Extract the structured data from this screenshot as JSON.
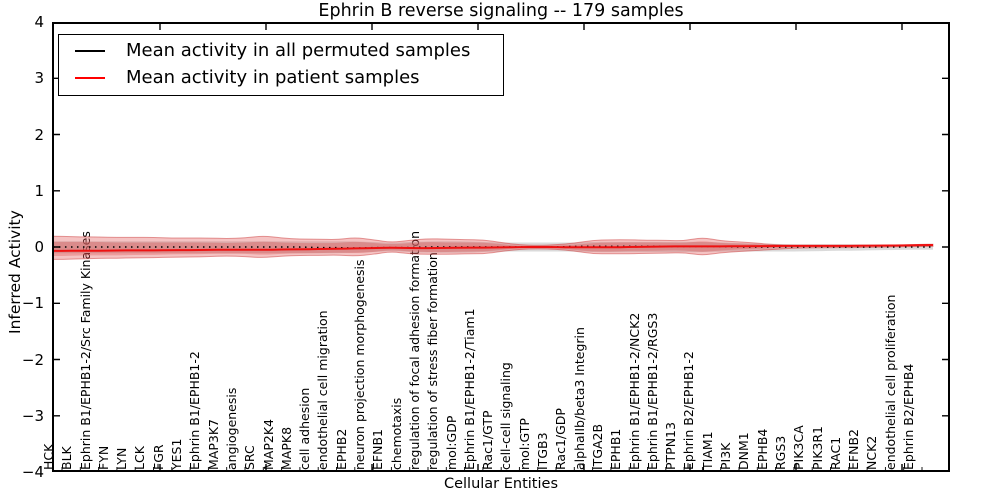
{
  "figure": {
    "title": "Ephrin B reverse signaling -- 179 samples",
    "xlabel": "Cellular Entities",
    "ylabel": "Inferred Activity"
  },
  "legend": {
    "position": "upper left",
    "items": [
      {
        "label": "Mean activity in all permuted samples",
        "color": "#000000"
      },
      {
        "label": "Mean activity in patient samples",
        "color": "#ff0000"
      }
    ]
  },
  "axes": {
    "y_tick_labels": [
      "4",
      "3",
      "2",
      "1",
      "0",
      "−1",
      "−2",
      "−3",
      "−4"
    ],
    "y_range": [
      -4,
      4
    ],
    "grid": false
  },
  "chart_data": {
    "type": "line",
    "title": "Ephrin B reverse signaling -- 179 samples",
    "xlabel": "Cellular Entities",
    "ylabel": "Inferred Activity",
    "ylim": [
      -4,
      4
    ],
    "legend_position": "upper left",
    "grid": false,
    "categories": [
      "HCK",
      "BLK",
      "Ephrin B1/EPHB1-2/Src Family Kinases",
      "FYN",
      "LYN",
      "LCK",
      "FGR",
      "YES1",
      "Ephrin B1/EPHB1-2",
      "MAP3K7",
      "angiogenesis",
      "SRC",
      "MAP2K4",
      "MAPK8",
      "cell adhesion",
      "endothelial cell migration",
      "EPHB2",
      "neuron projection morphogenesis",
      "EFNB1",
      "chemotaxis",
      "regulation of focal adhesion formation",
      "regulation of stress fiber formation",
      "mol:GDP",
      "Ephrin B1/EPHB1-2/Tiam1",
      "Rac1/GTP",
      "cell-cell signaling",
      "mol:GTP",
      "ITGB3",
      "Rac1/GDP",
      "alphaIIb/beta3 Integrin",
      "ITGA2B",
      "EPHB1",
      "Ephrin B1/EPHB1-2/NCK2",
      "Ephrin B1/EPHB1-2/RGS3",
      "PTPN13",
      "Ephrin B2/EPHB1-2",
      "TIAM1",
      "PI3K",
      "DNM1",
      "EPHB4",
      "RGS3",
      "PIK3CA",
      "PIK3R1",
      "RAC1",
      "EFNB2",
      "NCK2",
      "endothelial cell proliferation",
      "Ephrin B2/EPHB4"
    ],
    "series": [
      {
        "name": "Mean activity in all permuted samples",
        "color": "#000000",
        "line_style": "dotted",
        "values": [
          0,
          0,
          0,
          0,
          0,
          0,
          0,
          0,
          0,
          0,
          0,
          0,
          0,
          0,
          -0.01,
          -0.01,
          -0.02,
          -0.01,
          -0.01,
          -0.01,
          0,
          0,
          0,
          0,
          0,
          0,
          0,
          0,
          0.01,
          0.01,
          0.01,
          0.01,
          0.01,
          0.01,
          0.01,
          0.01,
          0.01,
          0,
          0,
          0,
          0,
          0,
          0,
          0,
          0,
          0,
          0,
          0
        ]
      },
      {
        "name": "Mean activity in patient samples",
        "color": "#ff0000",
        "line_style": "solid",
        "values": [
          -0.07,
          -0.065,
          -0.065,
          -0.06,
          -0.06,
          -0.06,
          -0.055,
          -0.055,
          -0.05,
          -0.05,
          -0.05,
          -0.05,
          -0.045,
          -0.04,
          -0.035,
          -0.03,
          -0.025,
          -0.02,
          -0.01,
          -0.02,
          -0.02,
          -0.015,
          -0.01,
          -0.01,
          -0.005,
          0,
          0,
          0,
          -0.005,
          -0.005,
          -0.005,
          0,
          0.005,
          0.01,
          0.01,
          0.01,
          0.01,
          0.015,
          0.015,
          0.02,
          0.02,
          0.02,
          0.02,
          0.02,
          0.025,
          0.025,
          0.03,
          0.035
        ]
      }
    ],
    "bands": [
      {
        "name": "permuted samples spread",
        "fill": "#a8a8a8",
        "opacity": 0.42,
        "stroke": "none",
        "upper": [
          0.1,
          0.1,
          0.1,
          0.1,
          0.1,
          0.1,
          0.1,
          0.1,
          0.1,
          0.1,
          0.1,
          0.1,
          0.1,
          0.1,
          0.1,
          0.1,
          0.1,
          0.09,
          0.07,
          0.09,
          0.1,
          0.1,
          0.1,
          0.09,
          0.08,
          0.08,
          0.08,
          0.08,
          0.08,
          0.09,
          0.09,
          0.09,
          0.09,
          0.09,
          0.09,
          0.09,
          0.08,
          0.07,
          0.06,
          0.055,
          0.05,
          0.05,
          0.05,
          0.05,
          0.045,
          0.045,
          0.04,
          0.05
        ],
        "lower": [
          -0.11,
          -0.11,
          -0.11,
          -0.11,
          -0.11,
          -0.11,
          -0.11,
          -0.11,
          -0.11,
          -0.11,
          -0.11,
          -0.11,
          -0.11,
          -0.11,
          -0.11,
          -0.11,
          -0.1,
          -0.09,
          -0.07,
          -0.09,
          -0.1,
          -0.1,
          -0.1,
          -0.09,
          -0.08,
          -0.08,
          -0.08,
          -0.08,
          -0.08,
          -0.09,
          -0.09,
          -0.09,
          -0.09,
          -0.09,
          -0.09,
          -0.09,
          -0.08,
          -0.08,
          -0.08,
          -0.08,
          -0.08,
          -0.075,
          -0.07,
          -0.065,
          -0.06,
          -0.055,
          -0.05,
          -0.05
        ]
      },
      {
        "name": "patient samples spread (outer)",
        "fill": "#e04545",
        "opacity": 0.32,
        "stroke": "#cc3c3c",
        "upper": [
          0.19,
          0.18,
          0.18,
          0.17,
          0.17,
          0.17,
          0.16,
          0.16,
          0.16,
          0.15,
          0.16,
          0.2,
          0.16,
          0.14,
          0.14,
          0.13,
          0.17,
          0.13,
          0.08,
          0.12,
          0.15,
          0.14,
          0.13,
          0.13,
          0.08,
          0.04,
          0.03,
          0.04,
          0.07,
          0.12,
          0.13,
          0.13,
          0.12,
          0.12,
          0.11,
          0.17,
          0.11,
          0.09,
          0.07,
          0.04,
          0.03,
          0.03,
          0.03,
          0.03,
          0.03,
          0.03,
          0.035,
          0.05
        ],
        "lower": [
          -0.22,
          -0.21,
          -0.2,
          -0.2,
          -0.19,
          -0.19,
          -0.18,
          -0.18,
          -0.17,
          -0.16,
          -0.17,
          -0.19,
          -0.16,
          -0.15,
          -0.15,
          -0.14,
          -0.16,
          -0.13,
          -0.08,
          -0.12,
          -0.13,
          -0.13,
          -0.12,
          -0.12,
          -0.08,
          -0.04,
          -0.03,
          -0.04,
          -0.07,
          -0.12,
          -0.12,
          -0.12,
          -0.11,
          -0.11,
          -0.1,
          -0.15,
          -0.1,
          -0.08,
          -0.06,
          -0.04,
          -0.02,
          -0.015,
          -0.01,
          -0.01,
          -0.005,
          0,
          0.005,
          0.01
        ]
      },
      {
        "name": "patient samples spread (core)",
        "fill": "#d63c3c",
        "opacity": 0.28,
        "stroke": "none",
        "upper": [
          0.09,
          0.09,
          0.09,
          0.08,
          0.08,
          0.08,
          0.08,
          0.08,
          0.08,
          0.07,
          0.08,
          0.1,
          0.08,
          0.07,
          0.07,
          0.07,
          0.1,
          0.07,
          0.05,
          0.07,
          0.09,
          0.08,
          0.08,
          0.08,
          0.05,
          0.02,
          0.02,
          0.025,
          0.04,
          0.07,
          0.08,
          0.08,
          0.08,
          0.08,
          0.07,
          0.11,
          0.07,
          0.06,
          0.05,
          0.03,
          0.03,
          0.03,
          0.03,
          0.03,
          0.03,
          0.03,
          0.03,
          0.04
        ],
        "lower": [
          -0.16,
          -0.15,
          -0.15,
          -0.15,
          -0.14,
          -0.14,
          -0.13,
          -0.13,
          -0.12,
          -0.12,
          -0.12,
          -0.14,
          -0.12,
          -0.11,
          -0.11,
          -0.1,
          -0.11,
          -0.09,
          -0.05,
          -0.08,
          -0.09,
          -0.09,
          -0.08,
          -0.08,
          -0.05,
          -0.02,
          -0.02,
          -0.02,
          -0.05,
          -0.08,
          -0.08,
          -0.07,
          -0.07,
          -0.06,
          -0.06,
          -0.09,
          -0.06,
          -0.04,
          -0.03,
          -0.02,
          -0.01,
          0,
          0,
          0,
          0.01,
          0.01,
          0.01,
          0.02
        ]
      }
    ]
  }
}
